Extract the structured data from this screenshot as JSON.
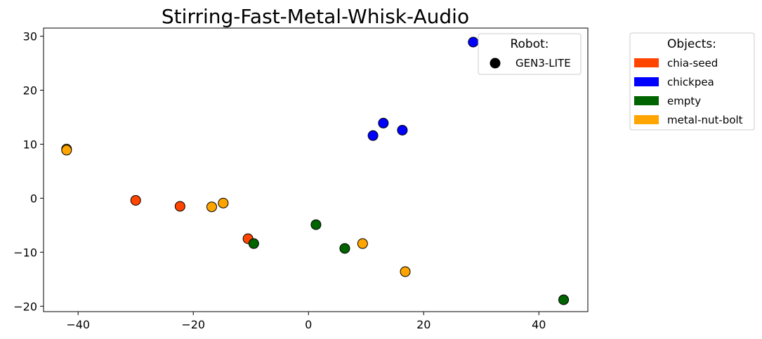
{
  "chart_data": {
    "type": "scatter",
    "title": "Stirring-Fast-Metal-Whisk-Audio",
    "xlabel": "",
    "ylabel": "",
    "xlim": [
      -46,
      48.5
    ],
    "ylim": [
      -21,
      31.5
    ],
    "x_ticks": [
      -40,
      -20,
      0,
      20,
      40
    ],
    "y_ticks": [
      -20,
      -10,
      0,
      10,
      20,
      30
    ],
    "x_tick_labels": [
      "−40",
      "−20",
      "0",
      "20",
      "40"
    ],
    "y_tick_labels": [
      "−20",
      "−10",
      "0",
      "10",
      "20",
      "30"
    ],
    "grid": false,
    "series": [
      {
        "name": "chia-seed",
        "color": "#ff4500",
        "points": [
          [
            -30,
            -0.4
          ],
          [
            -22.3,
            -1.5
          ],
          [
            -10.5,
            -7.5
          ]
        ]
      },
      {
        "name": "chickpea",
        "color": "#0000ff",
        "points": [
          [
            28.6,
            28.9
          ],
          [
            13,
            13.9
          ],
          [
            16.3,
            12.6
          ],
          [
            11.2,
            11.6
          ]
        ]
      },
      {
        "name": "empty",
        "color": "#006400",
        "points": [
          [
            1.3,
            -4.9
          ],
          [
            -9.5,
            -8.4
          ],
          [
            6.3,
            -9.3
          ],
          [
            44.3,
            -18.8
          ]
        ]
      },
      {
        "name": "metal-nut-bolt",
        "color": "#ffa500",
        "points": [
          [
            -42,
            9.1
          ],
          [
            -42,
            8.9
          ],
          [
            -16.8,
            -1.6
          ],
          [
            -14.8,
            -0.9
          ],
          [
            9.4,
            -8.4
          ],
          [
            16.8,
            -13.6
          ]
        ]
      }
    ],
    "robot_legend": {
      "title": "Robot:",
      "entries": [
        {
          "label": "GEN3-LITE",
          "color": "#000000"
        }
      ],
      "placement": "top-right inside plot"
    },
    "objects_legend": {
      "title": "Objects:",
      "entries": [
        {
          "label": "chia-seed",
          "color": "#ff4500"
        },
        {
          "label": "chickpea",
          "color": "#0000ff"
        },
        {
          "label": "empty",
          "color": "#006400"
        },
        {
          "label": "metal-nut-bolt",
          "color": "#ffa500"
        }
      ],
      "placement": "outside right"
    }
  }
}
